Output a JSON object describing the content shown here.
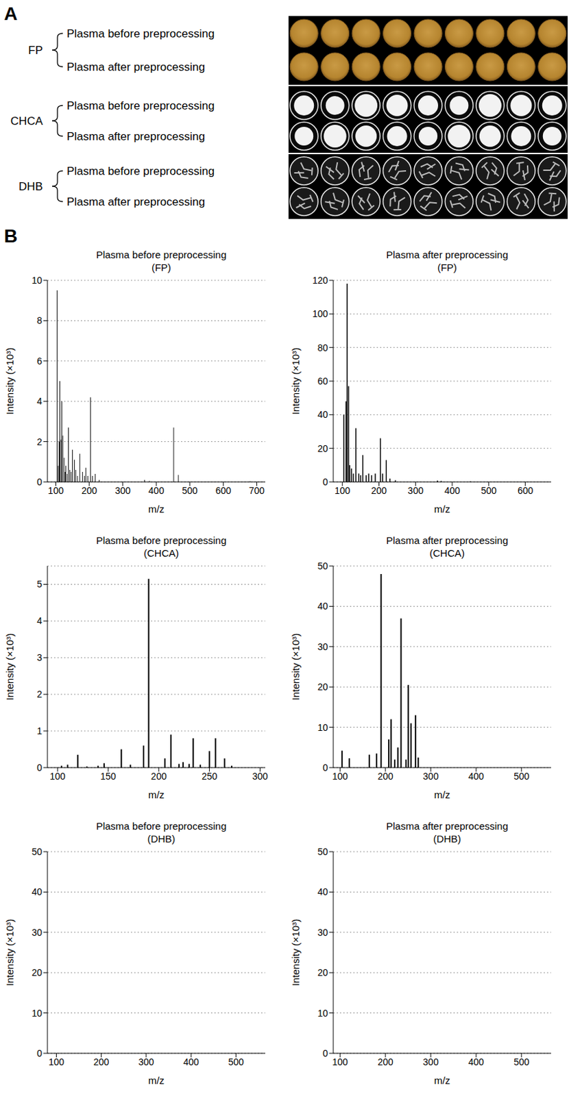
{
  "panel_a": {
    "label": "A",
    "spots_per_row": 9,
    "groups": [
      {
        "name": "FP",
        "rows": [
          "Plasma before preprocessing",
          "Plasma after preprocessing"
        ]
      },
      {
        "name": "CHCA",
        "rows": [
          "Plasma before preprocessing",
          "Plasma after preprocessing"
        ]
      },
      {
        "name": "DHB",
        "rows": [
          "Plasma before preprocessing",
          "Plasma after preprocessing"
        ]
      }
    ]
  },
  "panel_b": {
    "label": "B"
  },
  "chart_data": [
    {
      "type": "bar",
      "title": "Plasma before preprocessing",
      "subtitle": "(FP)",
      "x_label": "m/z",
      "y_label": "Intensity (×10³)",
      "x": [
        104,
        107,
        110,
        112,
        115,
        118,
        121,
        125,
        128,
        130,
        134,
        138,
        142,
        146,
        150,
        156,
        160,
        165,
        172,
        180,
        186,
        190,
        196,
        204,
        210,
        218,
        230,
        365,
        380,
        452,
        466,
        680
      ],
      "values": [
        9.5,
        0.8,
        2.0,
        5.0,
        2.1,
        4.0,
        2.3,
        1.2,
        0.5,
        0.8,
        0.4,
        2.7,
        0.6,
        0.5,
        1.6,
        1.1,
        0.6,
        0.3,
        1.4,
        0.5,
        0.3,
        0.7,
        0.3,
        4.2,
        0.3,
        0.4,
        0.1,
        0.1,
        0.05,
        2.7,
        0.35,
        0.03
      ],
      "color": "#000000",
      "xlim": [
        75,
        725
      ],
      "xticks": [
        100,
        200,
        300,
        400,
        500,
        600,
        700
      ],
      "ylim": [
        0,
        10
      ],
      "yticks": [
        0,
        2,
        4,
        6,
        8,
        10
      ],
      "grid": true
    },
    {
      "type": "bar",
      "title": "Plasma after preprocessing",
      "subtitle": "(FP)",
      "x_label": "m/z",
      "y_label": "Intensity (×10³)",
      "x": [
        104,
        110,
        113,
        117,
        120,
        125,
        130,
        137,
        145,
        150,
        156,
        165,
        172,
        180,
        190,
        204,
        210,
        220,
        230,
        245,
        360,
        370,
        450
      ],
      "values": [
        40,
        48,
        118,
        57,
        10,
        8,
        5,
        32,
        5,
        4,
        16,
        4,
        5,
        4,
        5,
        26,
        5,
        13,
        2,
        1,
        0.8,
        0.6,
        0.3
      ],
      "color": "#000000",
      "xlim": [
        75,
        670
      ],
      "xticks": [
        100,
        200,
        300,
        400,
        500,
        600
      ],
      "ylim": [
        0,
        120
      ],
      "yticks": [
        0,
        20,
        40,
        60,
        80,
        100,
        120
      ],
      "grid": true
    },
    {
      "type": "bar",
      "title": "Plasma before preprocessing",
      "subtitle": "(CHCA)",
      "x_label": "m/z",
      "y_label": "Intensity (×10³)",
      "x": [
        104,
        110,
        120,
        129,
        140,
        146,
        163,
        172,
        185,
        190,
        206,
        212,
        220,
        224,
        230,
        234,
        241,
        250,
        256,
        265,
        272
      ],
      "values": [
        0.05,
        0.08,
        0.35,
        0.03,
        0.05,
        0.12,
        0.5,
        0.08,
        0.6,
        5.15,
        0.25,
        0.9,
        0.1,
        0.15,
        0.1,
        0.8,
        0.08,
        0.45,
        0.8,
        0.25,
        0.05
      ],
      "color": "#000000",
      "xlim": [
        90,
        305
      ],
      "xticks": [
        100,
        150,
        200,
        250,
        300
      ],
      "ylim": [
        0,
        5.5
      ],
      "yticks": [
        0,
        1,
        2,
        3,
        4,
        5
      ],
      "grid": true
    },
    {
      "type": "bar",
      "title": "Plasma after preprocessing",
      "subtitle": "(CHCA)",
      "x_label": "m/z",
      "y_label": "Intensity (×10³)",
      "x": [
        104,
        120,
        164,
        180,
        190,
        207,
        212,
        220,
        227,
        234,
        245,
        250,
        256,
        266,
        272
      ],
      "values": [
        4.2,
        2.3,
        3.2,
        3.5,
        48,
        7,
        12,
        2,
        5,
        37,
        2,
        20.5,
        11,
        13,
        2.5
      ],
      "color": "#000000",
      "xlim": [
        85,
        565
      ],
      "xticks": [
        100,
        200,
        300,
        400,
        500
      ],
      "ylim": [
        0,
        50
      ],
      "yticks": [
        0,
        10,
        20,
        30,
        40,
        50
      ],
      "grid": true
    },
    {
      "type": "bar",
      "title": "Plasma before preprocessing",
      "subtitle": "(DHB)",
      "x_label": "m/z",
      "y_label": "Intensity (×10³)",
      "x": [],
      "values": [],
      "color": "#000000",
      "xlim": [
        80,
        565
      ],
      "xticks": [
        100,
        200,
        300,
        400,
        500
      ],
      "ylim": [
        0,
        50
      ],
      "yticks": [
        0,
        10,
        20,
        30,
        40,
        50
      ],
      "grid": true
    },
    {
      "type": "bar",
      "title": "Plasma after preprocessing",
      "subtitle": "(DHB)",
      "x_label": "m/z",
      "y_label": "Intensity (×10³)",
      "x": [],
      "values": [],
      "color": "#000000",
      "xlim": [
        85,
        565
      ],
      "xticks": [
        100,
        200,
        300,
        400,
        500
      ],
      "ylim": [
        0,
        50
      ],
      "yticks": [
        0,
        10,
        20,
        30,
        40,
        50
      ],
      "grid": true
    }
  ]
}
